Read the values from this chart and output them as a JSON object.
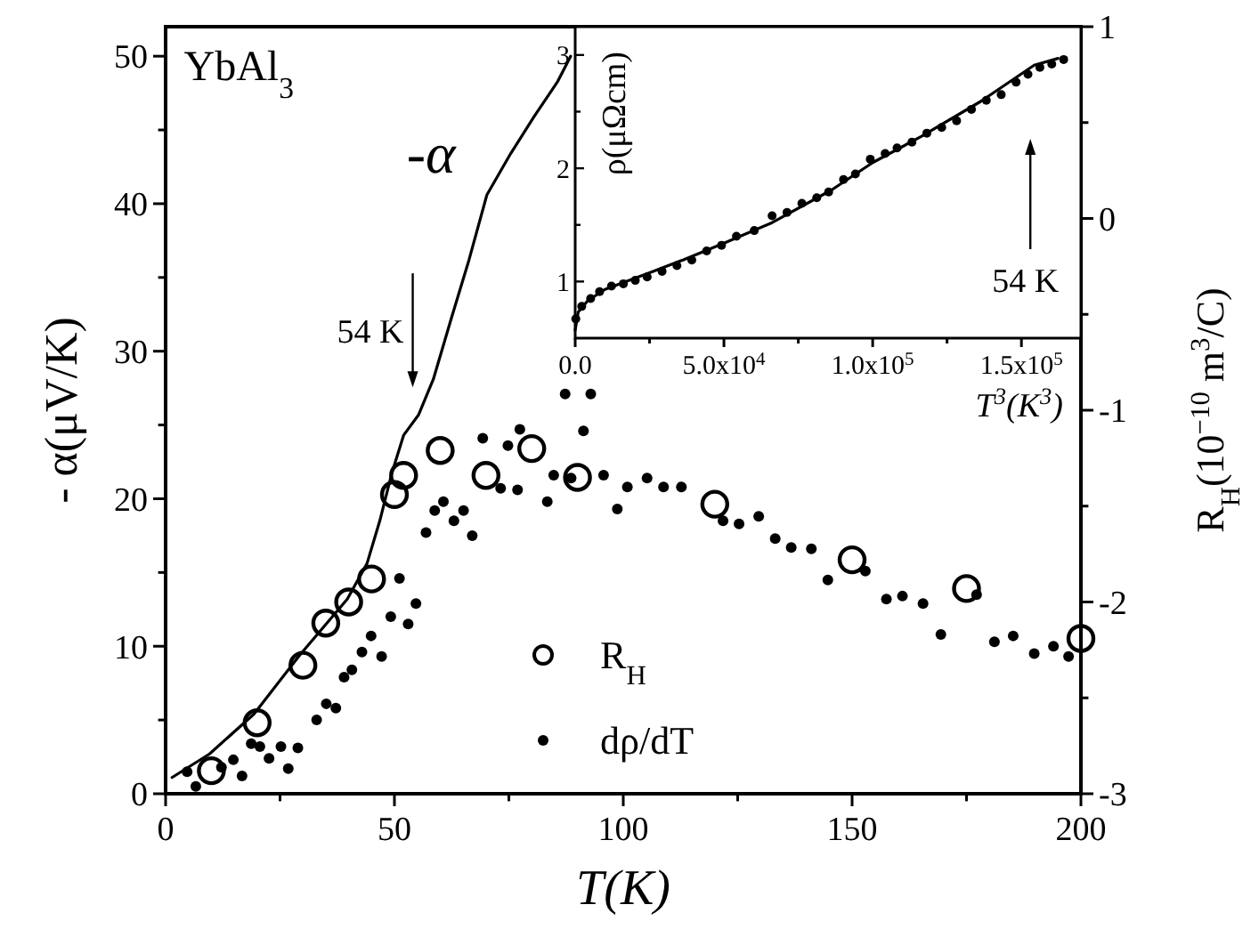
{
  "chart_data": [
    {
      "type": "line",
      "xlabel": "T(K)",
      "ylabel": "- α(μV/K)",
      "y2label": "R$_{H}$(10$^{−10}$ m$^{3}$/C)",
      "xlim": [
        0,
        200
      ],
      "xticks": [
        0,
        {
          "value": 25,
          "label": null
        },
        50,
        {
          "value": 75,
          "label": null
        },
        100,
        {
          "value": 125,
          "label": null
        },
        150,
        {
          "value": 175,
          "label": null
        },
        200
      ],
      "ylim": [
        0,
        52
      ],
      "yticks": [
        0,
        {
          "value": 5,
          "label": null
        },
        10,
        {
          "value": 15,
          "label": null
        },
        20,
        {
          "value": 25,
          "label": null
        },
        30,
        {
          "value": 35,
          "label": null
        },
        40,
        {
          "value": 45,
          "label": null
        },
        50
      ],
      "y2lim": [
        -3,
        1
      ],
      "y2ticks": [
        -3,
        {
          "value": -2.5,
          "label": null
        },
        -2,
        {
          "value": -1.5,
          "label": null
        },
        -1,
        {
          "value": -0.5,
          "label": null
        },
        0,
        {
          "value": 0.5,
          "label": null
        },
        1
      ],
      "legend": "bottom",
      "annotations": [
        "YbAl$_{3}$",
        "-α",
        "54 K"
      ],
      "series": [
        {
          "color": "#000000",
          "line_style": "solid",
          "x": [
            1.4,
            9.6,
            19.3,
            29.3,
            39.7,
            44,
            46.8,
            49.4,
            52,
            55.3,
            58.5,
            62.4,
            66.3,
            70.2,
            75.4,
            80.5,
            85.7,
            88.5
          ],
          "values": [
            1.1,
            2.7,
            5.4,
            9.4,
            13.2,
            15.6,
            18.5,
            21.7,
            24.3,
            25.7,
            28.1,
            32.2,
            36.2,
            40.6,
            43.4,
            45.9,
            48.3,
            50.0
          ]
        },
        {
          "type": "scatter",
          "name": "R$_{H}$",
          "axis": "y2",
          "color": "#000000",
          "marker": "circle",
          "x": [
            10,
            20,
            30,
            35,
            40,
            45,
            50,
            52,
            60,
            70,
            80,
            90,
            120,
            150,
            175,
            200
          ],
          "values": [
            -2.88,
            -2.63,
            -2.33,
            -2.11,
            -2.0,
            -1.88,
            -1.44,
            -1.34,
            -1.21,
            -1.34,
            -1.2,
            -1.35,
            -1.49,
            -1.78,
            -1.93,
            -2.19
          ]
        },
        {
          "type": "scatter",
          "name": "dρ/dT",
          "color": "#000000",
          "marker": "circle",
          "x": [
            4.7,
            6.6,
            12.2,
            14.8,
            16.7,
            18.7,
            20.6,
            22.6,
            25.2,
            26.8,
            28.9,
            33,
            35.1,
            37.2,
            39,
            40.7,
            42.9,
            44.9,
            47.2,
            49.2,
            51.1,
            53,
            54.7,
            56.9,
            58.8,
            60.7,
            63,
            65.1,
            67,
            69.3,
            73.2,
            74.8,
            76.9,
            77.4,
            83.4,
            84.8,
            87.3,
            88.6,
            91.3,
            92.9,
            95.7,
            98.7,
            100.9,
            105.2,
            108.8,
            112.7,
            121.8,
            125.3,
            129.6,
            133.2,
            136.7,
            141.1,
            144.7,
            152.9,
            157.5,
            161,
            165.5,
            169.4,
            177.2,
            181.1,
            185.2,
            189.8,
            194,
            197.3
          ],
          "values": [
            1.5,
            0.5,
            1.8,
            2.3,
            1.2,
            3.4,
            3.2,
            2.4,
            3.2,
            1.7,
            3.1,
            5.0,
            6.1,
            5.8,
            7.9,
            8.4,
            9.6,
            10.7,
            9.3,
            12.0,
            14.6,
            11.5,
            12.9,
            17.7,
            19.2,
            19.8,
            18.5,
            19.2,
            17.5,
            24.1,
            20.7,
            23.6,
            20.6,
            24.7,
            19.8,
            21.6,
            27.1,
            21.4,
            24.6,
            27.1,
            21.6,
            19.3,
            20.8,
            21.4,
            20.8,
            20.8,
            18.5,
            18.3,
            18.8,
            17.3,
            16.7,
            16.6,
            14.5,
            15.1,
            13.2,
            13.4,
            12.9,
            10.8,
            13.5,
            10.3,
            10.7,
            9.5,
            10.0,
            9.3
          ]
        }
      ]
    },
    {
      "type": "scatter",
      "xlabel": "T$^{3}$(K$^{3}$)",
      "ylabel": "ρ(μΩcm)",
      "xlim": [
        0,
        170000
      ],
      "xticks": [
        {
          "value": 0,
          "label": "0.0"
        },
        {
          "value": 25000,
          "label": null
        },
        {
          "value": 50000,
          "label": "5.0x10$^{4}$"
        },
        {
          "value": 75000,
          "label": null
        },
        {
          "value": 100000,
          "label": "1.0x10$^{5}$"
        },
        {
          "value": 125000,
          "label": null
        },
        {
          "value": 150000,
          "label": "1.5x10$^{5}$"
        }
      ],
      "ylim": [
        0.5,
        3.25
      ],
      "yticks": [
        1,
        {
          "value": 1.5,
          "label": null
        },
        2,
        {
          "value": 2.5,
          "label": null
        },
        3
      ],
      "annotations": [
        "54 K"
      ],
      "series": [
        {
          "color": "#000000",
          "marker": "circle",
          "x": [
            200,
            2200,
            5200,
            8200,
            12200,
            16200,
            20200,
            24200,
            29200,
            34200,
            39200,
            44200,
            49200,
            54200,
            60200,
            66200,
            71200,
            76200,
            81200,
            85200,
            90200,
            94200,
            99200,
            104200,
            108200,
            113200,
            118200,
            123200,
            128200,
            133200,
            138200,
            143200,
            148200,
            152200,
            156200,
            160200,
            164200
          ],
          "values": [
            0.67,
            0.78,
            0.85,
            0.91,
            0.96,
            0.98,
            1.01,
            1.04,
            1.09,
            1.14,
            1.19,
            1.27,
            1.32,
            1.4,
            1.45,
            1.58,
            1.61,
            1.69,
            1.74,
            1.79,
            1.9,
            1.95,
            2.08,
            2.13,
            2.18,
            2.23,
            2.31,
            2.36,
            2.42,
            2.52,
            2.6,
            2.65,
            2.76,
            2.83,
            2.89,
            2.92,
            2.96
          ]
        },
        {
          "type": "line",
          "color": "#000000",
          "line_style": "solid",
          "x": [
            0,
            1000,
            4200,
            10000,
            26200,
            36200,
            50200,
            66200,
            86300,
            100000,
            116300,
            136300,
            154300,
            162300
          ],
          "values": [
            0.57,
            0.73,
            0.83,
            0.93,
            1.09,
            1.19,
            1.34,
            1.52,
            1.81,
            2.05,
            2.28,
            2.59,
            2.91,
            2.97
          ]
        }
      ]
    }
  ]
}
